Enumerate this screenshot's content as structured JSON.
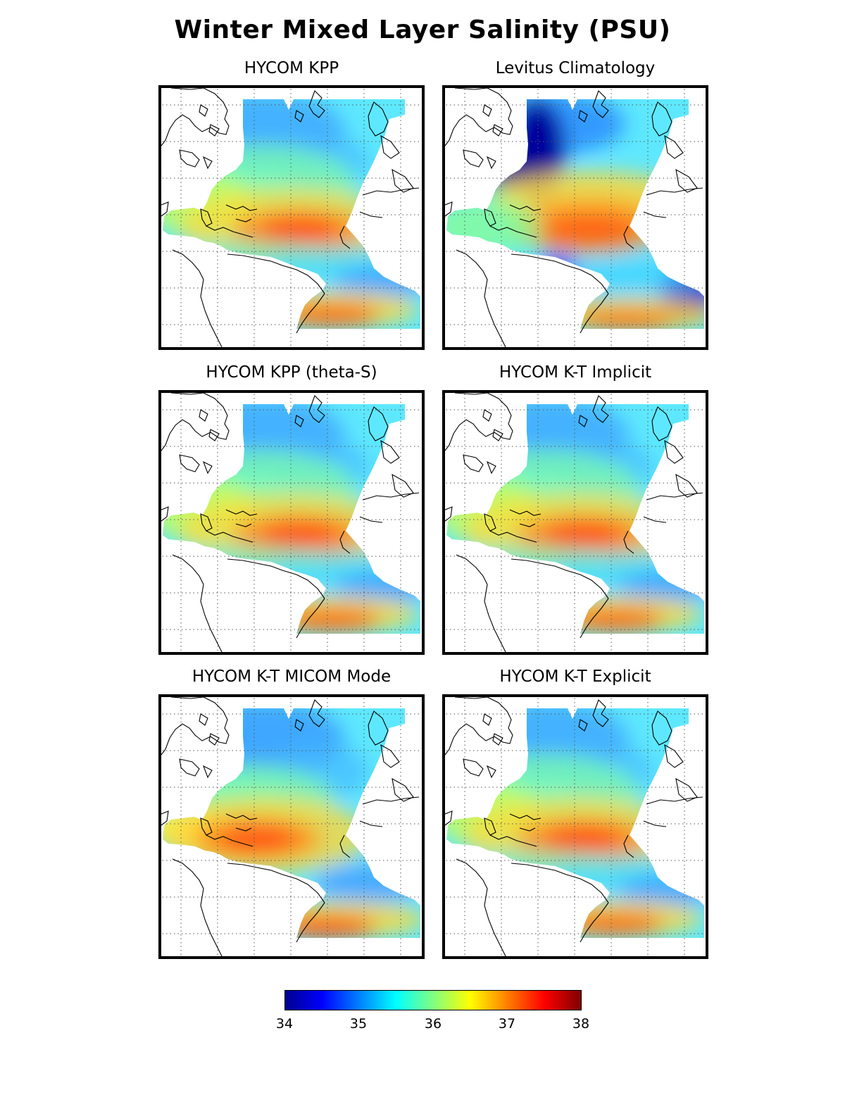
{
  "title": "Winter Mixed Layer Salinity (PSU)",
  "panels": [
    {
      "title": "HYCOM KPP",
      "variant": "model"
    },
    {
      "title": "Levitus Climatology",
      "variant": "levitus"
    },
    {
      "title": "HYCOM KPP (theta-S)",
      "variant": "model"
    },
    {
      "title": "HYCOM K-T Implicit",
      "variant": "model"
    },
    {
      "title": "HYCOM K-T MICOM Mode",
      "variant": "micom"
    },
    {
      "title": "HYCOM K-T Explicit",
      "variant": "model"
    }
  ],
  "colorbar": {
    "ticks": [
      "34",
      "35",
      "36",
      "37",
      "38"
    ],
    "min": 34,
    "max": 38,
    "colormap": "jet"
  }
}
